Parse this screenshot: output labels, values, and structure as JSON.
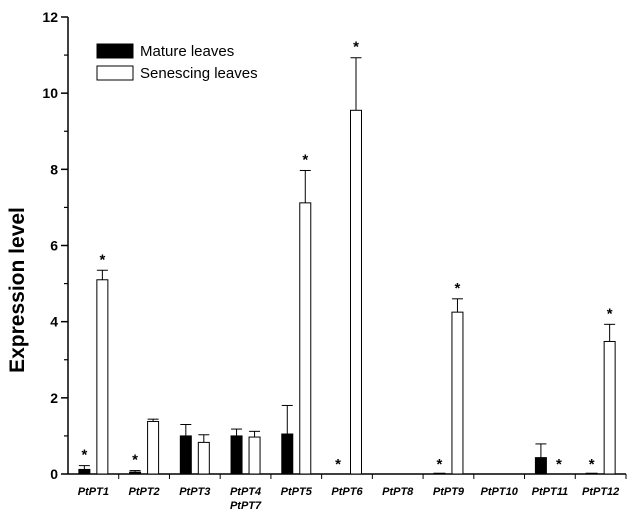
{
  "chart_data": {
    "type": "bar",
    "ylabel": "Expression level",
    "xlabel": "",
    "ylim": [
      0,
      12
    ],
    "yticks": [
      "0",
      "2",
      "4",
      "6",
      "8",
      "10",
      "12"
    ],
    "grid": false,
    "legend_position": "top-left",
    "categories": [
      "PtPT1",
      "PtPT2",
      "PtPT3",
      "PtPT4 PtPT7",
      "PtPT5",
      "PtPT6",
      "PtPT8",
      "PtPT9",
      "PtPT10",
      "PtPT11",
      "PtPT12"
    ],
    "category_labels": [
      [
        "PtPT1"
      ],
      [
        "PtPT2"
      ],
      [
        "PtPT3"
      ],
      [
        "PtPT4",
        "PtPT7"
      ],
      [
        "PtPT5"
      ],
      [
        "PtPT6"
      ],
      [
        "PtPT8"
      ],
      [
        "PtPT9"
      ],
      [
        "PtPT10"
      ],
      [
        "PtPT11"
      ],
      [
        "PtPT12"
      ]
    ],
    "series": [
      {
        "name": "Mature leaves",
        "color": "#000000",
        "values": [
          0.12,
          0.05,
          1.0,
          1.0,
          1.05,
          0,
          0,
          0.02,
          0,
          0.43,
          0.02
        ],
        "errors": [
          0.1,
          0.04,
          0.3,
          0.18,
          0.75,
          0,
          0,
          0,
          0,
          0.36,
          0
        ],
        "significant": [
          true,
          true,
          false,
          false,
          false,
          true,
          false,
          true,
          false,
          false,
          true
        ]
      },
      {
        "name": "Senescing leaves",
        "color": "#ffffff",
        "values": [
          5.1,
          1.38,
          0.83,
          0.97,
          7.12,
          9.55,
          0,
          4.25,
          0,
          0,
          3.48
        ],
        "errors": [
          0.25,
          0.06,
          0.2,
          0.15,
          0.85,
          1.38,
          0,
          0.35,
          0,
          0,
          0.45
        ],
        "significant": [
          true,
          false,
          false,
          false,
          true,
          true,
          false,
          true,
          false,
          true,
          true
        ]
      }
    ],
    "significance_marker": "*"
  }
}
